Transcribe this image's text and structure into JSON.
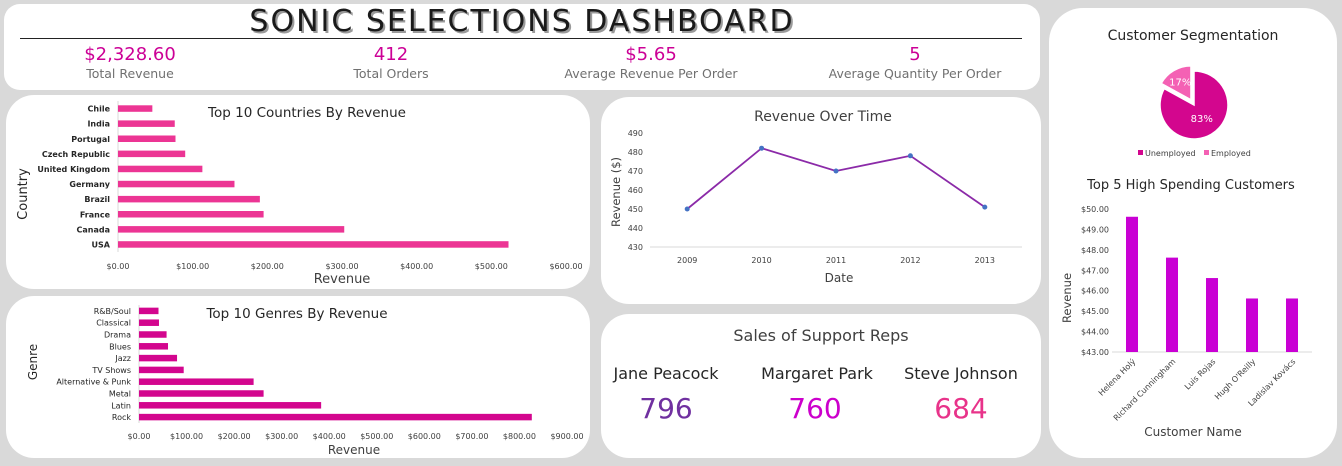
{
  "title": "SONIC SELECTIONS DASHBOARD",
  "kpis": [
    {
      "value": "$2,328.60",
      "label": "Total Revenue"
    },
    {
      "value": "412",
      "label": "Total Orders"
    },
    {
      "value": "$5.65",
      "label": "Average Revenue Per Order"
    },
    {
      "value": "5",
      "label": "Average Quantity Per Order"
    }
  ],
  "reps": {
    "title": "Sales of Support Reps",
    "items": [
      {
        "name": "Jane Peacock",
        "value": "796",
        "color": "#7030a0"
      },
      {
        "name": "Margaret Park",
        "value": "760",
        "color": "#cc00cc"
      },
      {
        "name": "Steve Johnson",
        "value": "684",
        "color": "#e8338a"
      }
    ]
  },
  "chart_data": [
    {
      "id": "countries",
      "type": "bar",
      "orientation": "horizontal",
      "title": "Top 10 Countries By Revenue",
      "xlabel": "Revenue",
      "ylabel": "Country",
      "color": "#ec3594",
      "categories": [
        "USA",
        "Canada",
        "France",
        "Brazil",
        "Germany",
        "United Kingdom",
        "Czech Republic",
        "Portugal",
        "India",
        "Chile"
      ],
      "values": [
        523,
        303,
        195,
        190,
        156,
        113,
        90,
        77,
        76,
        46
      ],
      "xlim": [
        0,
        600
      ],
      "ticks": [
        "$0.00",
        "$100.00",
        "$200.00",
        "$300.00",
        "$400.00",
        "$500.00",
        "$600.00"
      ]
    },
    {
      "id": "genres",
      "type": "bar",
      "orientation": "horizontal",
      "title": "Top 10 Genres By Revenue",
      "xlabel": "Revenue",
      "ylabel": "Genre",
      "color": "#d3068e",
      "categories": [
        "Rock",
        "Latin",
        "Metal",
        "Alternative & Punk",
        "TV Shows",
        "Jazz",
        "Blues",
        "Drama",
        "Classical",
        "R&B/Soul"
      ],
      "values": [
        826,
        383,
        262,
        241,
        94,
        80,
        61,
        58,
        42,
        41
      ],
      "xlim": [
        0,
        900
      ],
      "ticks": [
        "$0.00",
        "$100.00",
        "$200.00",
        "$300.00",
        "$400.00",
        "$500.00",
        "$600.00",
        "$700.00",
        "$800.00",
        "$900.00"
      ]
    },
    {
      "id": "time",
      "type": "line",
      "title": "Revenue Over Time",
      "xlabel": "Date",
      "ylabel": "Revenue ($)",
      "color": "#8b2aa8",
      "marker_color": "#4472c4",
      "categories": [
        "2009",
        "2010",
        "2011",
        "2012",
        "2013"
      ],
      "values": [
        450,
        482,
        470,
        478,
        451
      ],
      "ylim": [
        430,
        490
      ],
      "ticks": [
        "430",
        "440",
        "450",
        "460",
        "470",
        "480",
        "490"
      ]
    },
    {
      "id": "segments",
      "type": "pie",
      "title": "Customer Segmentation",
      "slices": [
        {
          "name": "Unemployed",
          "value": 83,
          "label": "83%",
          "color": "#d3068e"
        },
        {
          "name": "Employed",
          "value": 17,
          "label": "17%",
          "color": "#f461b4"
        }
      ],
      "legend": "bottom"
    },
    {
      "id": "customers",
      "type": "bar",
      "orientation": "vertical",
      "title": "Top 5 High Spending Customers",
      "xlabel": "Customer Name",
      "ylabel": "Revenue",
      "color": "#c900d4",
      "categories": [
        "Helena Holý",
        "Richard Cunningham",
        "Luis Rojas",
        "Hugh O'Reilly",
        "Ladislav Kovács"
      ],
      "values": [
        49.62,
        47.62,
        46.62,
        45.62,
        45.62
      ],
      "ylim": [
        43,
        50
      ],
      "ticks": [
        "$43.00",
        "$44.00",
        "$45.00",
        "$46.00",
        "$47.00",
        "$48.00",
        "$49.00",
        "$50.00"
      ]
    }
  ]
}
